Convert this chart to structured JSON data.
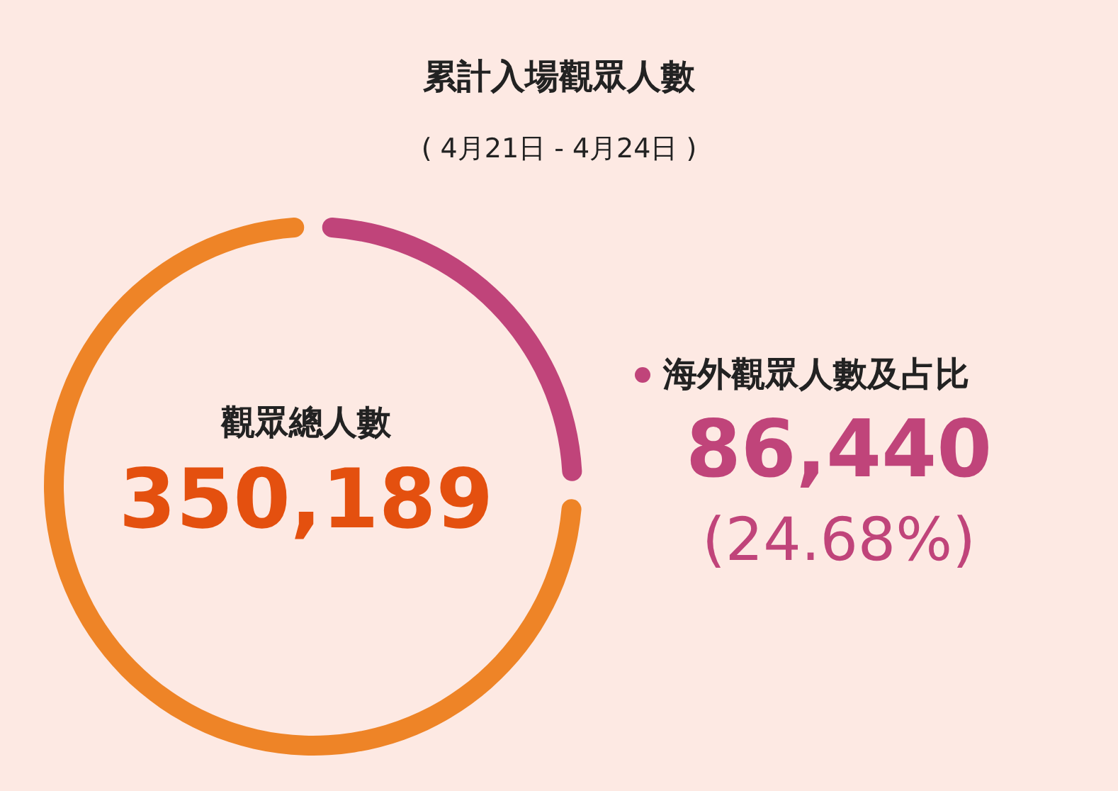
{
  "chart_data": {
    "type": "donut",
    "title": "累計入場觀眾人數",
    "subtitle": "( 4月21日 - 4月24日 )",
    "categories": [
      "海外觀眾人數及占比",
      null
    ],
    "values": [
      24.68,
      75.32
    ],
    "colors": [
      "#c0447a",
      "#ee8427"
    ],
    "legend": "right",
    "annotations": [
      "觀眾總人數",
      "350,189",
      "86,440",
      "(24.68%)"
    ]
  }
}
